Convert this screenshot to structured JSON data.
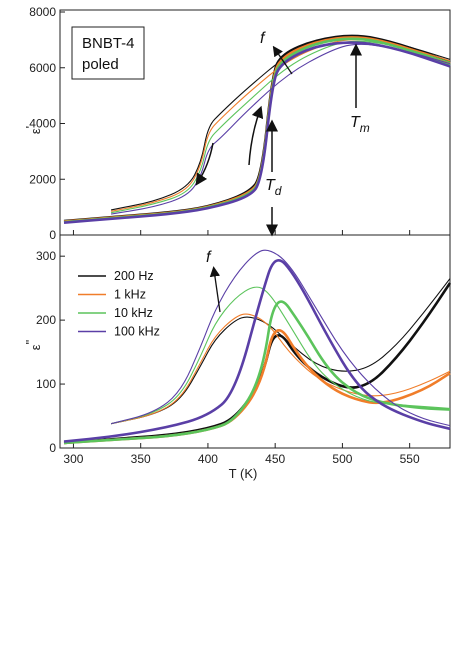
{
  "chart_data": {
    "type": "line",
    "xlabel": "T (K)",
    "xlim": [
      290,
      580
    ],
    "x_ticks": [
      300,
      350,
      400,
      450,
      500,
      550
    ],
    "colors": {
      "200 Hz": "#111111",
      "1 kHz": "#f07d2a",
      "10 kHz": "#5cc45c",
      "100 kHz": "#5a3fa6"
    },
    "annotation_box": {
      "line1": "BNBT-4",
      "line2": "poled"
    },
    "annotations": {
      "f": "f",
      "Tm_base": "T",
      "Tm_sub": "m",
      "Td_base": "T",
      "Td_sub": "d"
    },
    "panels": [
      {
        "id": "top",
        "ylabel_base": "ε",
        "ylabel_prime": "'",
        "ylim": [
          0,
          8000
        ],
        "y_ticks": [
          0,
          2000,
          4000,
          6000,
          8000
        ],
        "series": [
          {
            "name": "200 Hz",
            "curves": [
              {
                "x": [
                  328,
                  360,
                  385,
                  395,
                  400,
                  410,
                  430,
                  460,
                  490,
                  510,
                  540,
                  580
                ],
                "y": [
                  900,
                  1200,
                  1700,
                  2600,
                  3900,
                  4400,
                  5300,
                  6500,
                  7000,
                  7100,
                  6900,
                  6300
                ]
              },
              {
                "x": [
                  293,
                  330,
                  370,
                  400,
                  430,
                  440,
                  448,
                  455,
                  480,
                  510,
                  540,
                  580
                ],
                "y": [
                  500,
                  650,
                  800,
                  1000,
                  1500,
                  2100,
                  5800,
                  6500,
                  7000,
                  7200,
                  6900,
                  6200
                ]
              }
            ]
          },
          {
            "name": "1 kHz",
            "curves": [
              {
                "x": [
                  328,
                  360,
                  385,
                  395,
                  400,
                  410,
                  430,
                  460,
                  490,
                  510,
                  540,
                  580
                ],
                "y": [
                  850,
                  1150,
                  1600,
                  2500,
                  3700,
                  4200,
                  5100,
                  6300,
                  6900,
                  7050,
                  6850,
                  6250
                ]
              },
              {
                "x": [
                  293,
                  330,
                  370,
                  400,
                  430,
                  440,
                  448,
                  455,
                  480,
                  510,
                  540,
                  580
                ],
                "y": [
                  480,
                  630,
                  780,
                  980,
                  1450,
                  2000,
                  5700,
                  6400,
                  6950,
                  7150,
                  6850,
                  6150
                ]
              }
            ]
          },
          {
            "name": "10 kHz",
            "curves": [
              {
                "x": [
                  328,
                  360,
                  385,
                  395,
                  400,
                  410,
                  430,
                  460,
                  490,
                  510,
                  540,
                  580
                ],
                "y": [
                  800,
                  1100,
                  1500,
                  2300,
                  3400,
                  3900,
                  4800,
                  6100,
                  6800,
                  7000,
                  6800,
                  6200
                ]
              },
              {
                "x": [
                  293,
                  330,
                  370,
                  400,
                  430,
                  440,
                  448,
                  455,
                  480,
                  510,
                  540,
                  580
                ],
                "y": [
                  460,
                  610,
                  760,
                  960,
                  1400,
                  1950,
                  5600,
                  6300,
                  6900,
                  7100,
                  6800,
                  6100
                ]
              }
            ]
          },
          {
            "name": "100 kHz",
            "curves": [
              {
                "x": [
                  328,
                  360,
                  385,
                  395,
                  400,
                  410,
                  430,
                  460,
                  490,
                  510,
                  540,
                  580
                ],
                "y": [
                  750,
                  1000,
                  1400,
                  2100,
                  3100,
                  3500,
                  4500,
                  5800,
                  6600,
                  6900,
                  6700,
                  6150
                ]
              },
              {
                "x": [
                  293,
                  330,
                  370,
                  400,
                  430,
                  440,
                  448,
                  455,
                  480,
                  510,
                  540,
                  580
                ],
                "y": [
                  440,
                  590,
                  740,
                  940,
                  1350,
                  1900,
                  5500,
                  6200,
                  6800,
                  6950,
                  6700,
                  6050
                ]
              }
            ]
          }
        ]
      },
      {
        "id": "bottom",
        "ylabel_base": "ε",
        "ylabel_prime": "\"",
        "ylim": [
          0,
          330
        ],
        "y_ticks": [
          0,
          100,
          200,
          300
        ],
        "series": [
          {
            "name": "200 Hz",
            "curves": [
              {
                "x": [
                  328,
                  360,
                  380,
                  395,
                  405,
                  420,
                  430,
                  445,
                  460,
                  480,
                  500,
                  520,
                  540,
                  560,
                  580
                ],
                "y": [
                  38,
                  52,
                  75,
                  130,
                  170,
                  200,
                  207,
                  195,
                  165,
                  130,
                  118,
                  125,
                  160,
                  210,
                  265
                ]
              },
              {
                "x": [
                  293,
                  330,
                  370,
                  400,
                  420,
                  440,
                  450,
                  470,
                  500,
                  520,
                  540,
                  560,
                  580
                ],
                "y": [
                  8,
                  14,
                  20,
                  30,
                  45,
                  105,
                  195,
                  130,
                  92,
                  98,
                  140,
                  195,
                  258
                ]
              }
            ]
          },
          {
            "name": "1 kHz",
            "curves": [
              {
                "x": [
                  328,
                  360,
                  380,
                  395,
                  405,
                  420,
                  430,
                  445,
                  460,
                  480,
                  500,
                  520,
                  540,
                  560,
                  580
                ],
                "y": [
                  38,
                  52,
                  77,
                  135,
                  175,
                  205,
                  212,
                  195,
                  150,
                  110,
                  90,
                  80,
                  85,
                  100,
                  120
                ]
              },
              {
                "x": [
                  293,
                  330,
                  370,
                  400,
                  420,
                  440,
                  450,
                  470,
                  490,
                  510,
                  530,
                  560,
                  580
                ],
                "y": [
                  8,
                  13,
                  18,
                  28,
                  42,
                  100,
                  205,
                  135,
                  95,
                  75,
                  68,
                  90,
                  117
                ]
              }
            ]
          },
          {
            "name": "10 kHz",
            "curves": [
              {
                "x": [
                  328,
                  360,
                  380,
                  395,
                  405,
                  420,
                  435,
                  445,
                  460,
                  480,
                  500,
                  520,
                  540,
                  560,
                  580
                ],
                "y": [
                  38,
                  54,
                  82,
                  145,
                  195,
                  235,
                  255,
                  245,
                  195,
                  125,
                  90,
                  72,
                  68,
                  65,
                  62
                ]
              },
              {
                "x": [
                  293,
                  330,
                  370,
                  400,
                  420,
                  440,
                  450,
                  470,
                  490,
                  510,
                  530,
                  560,
                  580
                ],
                "y": [
                  8,
                  13,
                  18,
                  28,
                  42,
                  110,
                  250,
                  190,
                  120,
                  85,
                  70,
                  62,
                  60
                ]
              }
            ]
          },
          {
            "name": "100 kHz",
            "curves": [
              {
                "x": [
                  328,
                  360,
                  380,
                  395,
                  405,
                  420,
                  435,
                  445,
                  460,
                  480,
                  500,
                  520,
                  540,
                  560,
                  580
                ],
                "y": [
                  38,
                  55,
                  88,
                  160,
                  215,
                  270,
                  305,
                  312,
                  290,
                  220,
                  150,
                  100,
                  65,
                  45,
                  35
                ]
              },
              {
                "x": [
                  293,
                  330,
                  370,
                  400,
                  420,
                  440,
                  450,
                  465,
                  490,
                  510,
                  530,
                  560,
                  580
                ],
                "y": [
                  10,
                  18,
                  32,
                  50,
                  85,
                  240,
                  305,
                  270,
                  170,
                  100,
                  65,
                  40,
                  30
                ]
              }
            ]
          }
        ]
      }
    ]
  }
}
